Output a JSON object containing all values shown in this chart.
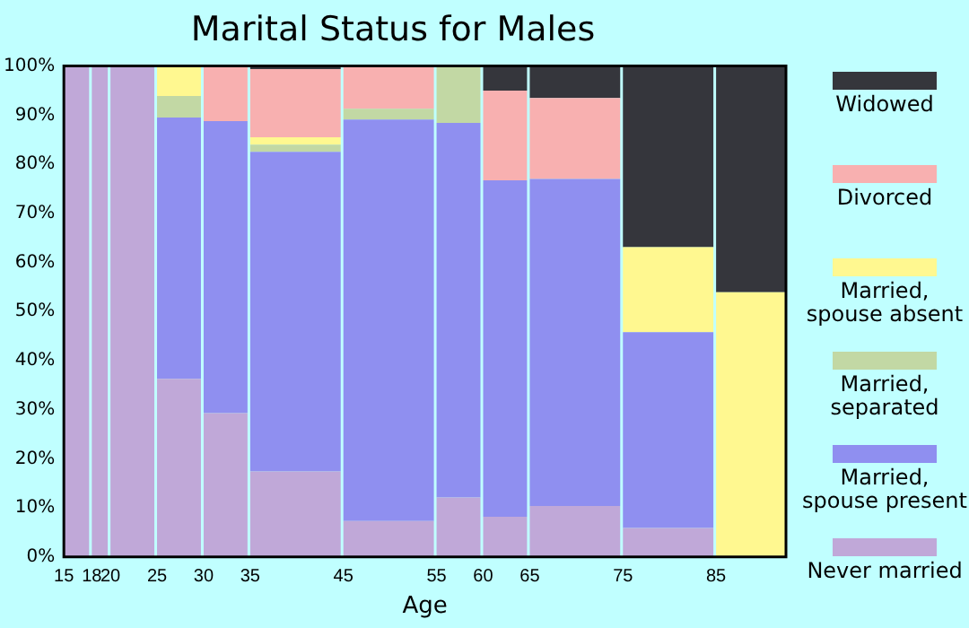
{
  "chart_data": {
    "type": "bar",
    "title": "Marital Status for Males",
    "xlabel": "Age",
    "x": [
      16.5,
      19,
      22.5,
      27.5,
      32.5,
      40,
      50,
      57.5,
      62.5,
      70,
      80,
      88.75
    ],
    "xlim": [
      15,
      92.5
    ],
    "xticks": [
      15,
      18,
      20,
      25,
      30,
      35,
      45,
      55,
      60,
      65,
      75,
      85
    ],
    "ylim": [
      0,
      100
    ],
    "yticks": [
      {
        "value": 0,
        "label": "0%"
      },
      {
        "value": 10,
        "label": "10%"
      },
      {
        "value": 20,
        "label": "20%"
      },
      {
        "value": 30,
        "label": "30%"
      },
      {
        "value": 40,
        "label": "40%"
      },
      {
        "value": 50,
        "label": "50%"
      },
      {
        "value": 60,
        "label": "60%"
      },
      {
        "value": 70,
        "label": "70%"
      },
      {
        "value": 80,
        "label": "80%"
      },
      {
        "value": 90,
        "label": "90%"
      },
      {
        "value": 100,
        "label": "100%"
      }
    ],
    "stacked": true,
    "legend": "right",
    "grid": false,
    "series": [
      {
        "name": "Never married",
        "color": "#c0a8d8",
        "values": [
          100,
          100,
          100,
          36.3,
          29.3,
          17.4,
          7.3,
          12.1,
          8.2,
          10.4,
          5.9,
          0
        ]
      },
      {
        "name": "Married, spouse present",
        "color": "#8f8ff0",
        "values": [
          0,
          0,
          0,
          53.2,
          59.5,
          65.1,
          81.8,
          76.3,
          68.5,
          66.6,
          39.9,
          0
        ]
      },
      {
        "name": "Married, separated",
        "color": "#c2d8a4",
        "values": [
          0,
          0,
          0,
          4.4,
          0,
          1.5,
          2.2,
          11.6,
          0,
          0,
          0,
          0
        ]
      },
      {
        "name": "Married, spouse absent",
        "color": "#fff890",
        "values": [
          0,
          0,
          0,
          6.1,
          0,
          1.5,
          0,
          0,
          0,
          0,
          17.3,
          53.9
        ]
      },
      {
        "name": "Divorced",
        "color": "#f8b0b0",
        "values": [
          0,
          0,
          0,
          0,
          11.2,
          13.9,
          8.7,
          0,
          18.3,
          16.5,
          0,
          0
        ]
      },
      {
        "name": "Widowed",
        "color": "#35363c",
        "values": [
          0,
          0,
          0,
          0,
          0,
          0.6,
          0,
          0,
          5.0,
          6.5,
          36.9,
          46.1
        ]
      }
    ]
  }
}
